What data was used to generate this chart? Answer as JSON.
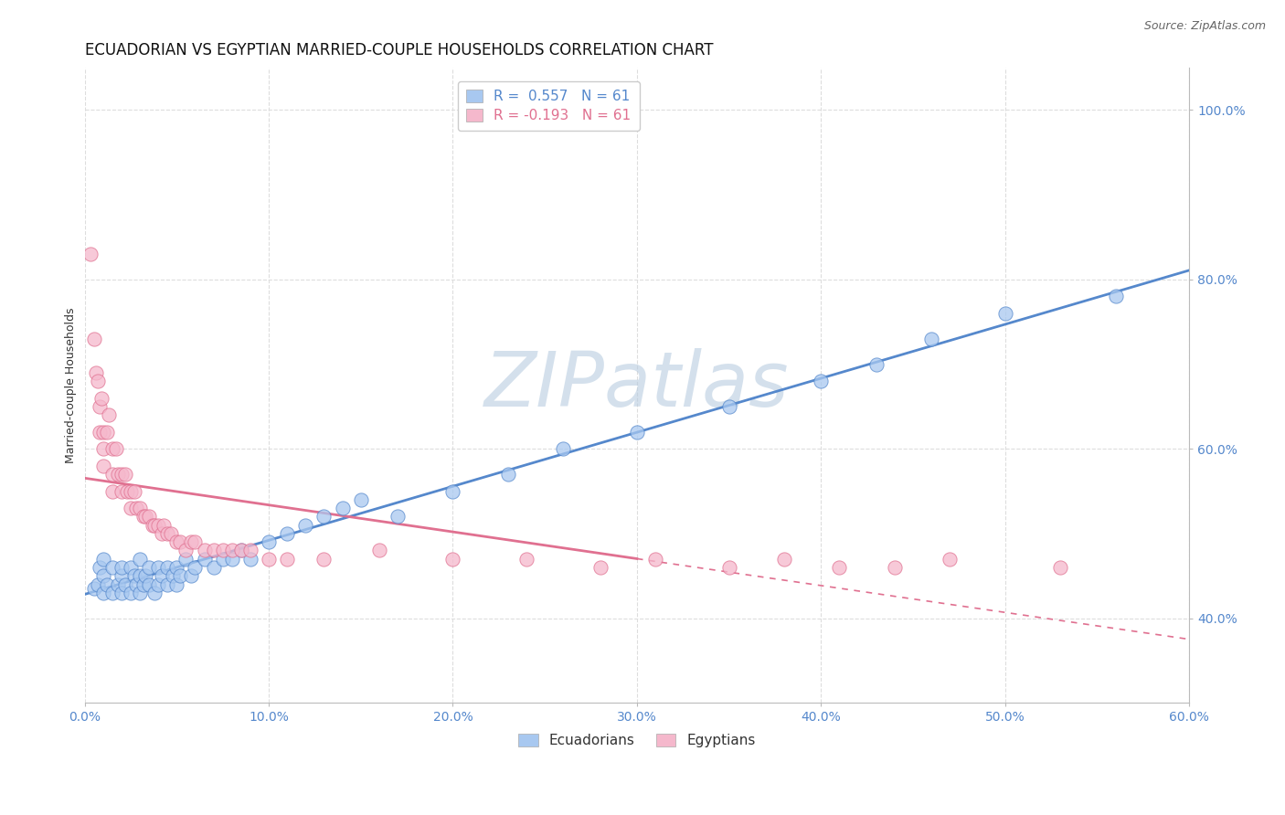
{
  "title": "ECUADORIAN VS EGYPTIAN MARRIED-COUPLE HOUSEHOLDS CORRELATION CHART",
  "source_text": "Source: ZipAtlas.com",
  "ylabel": "Married-couple Households",
  "xlim": [
    0.0,
    0.6
  ],
  "ylim": [
    0.3,
    1.05
  ],
  "xtick_labels": [
    "0.0%",
    "10.0%",
    "20.0%",
    "30.0%",
    "40.0%",
    "50.0%",
    "60.0%"
  ],
  "xtick_vals": [
    0.0,
    0.1,
    0.2,
    0.3,
    0.4,
    0.5,
    0.6
  ],
  "ytick_labels": [
    "40.0%",
    "60.0%",
    "80.0%",
    "100.0%"
  ],
  "ytick_vals": [
    0.4,
    0.6,
    0.8,
    1.0
  ],
  "legend_r1": "R =  0.557   N = 61",
  "legend_r2": "R = -0.193   N = 61",
  "color_blue": "#A8C8F0",
  "color_pink": "#F5B8CC",
  "line_blue": "#5588CC",
  "line_pink": "#E07090",
  "watermark": "ZIPatlas",
  "ecuadorians_x": [
    0.005,
    0.007,
    0.008,
    0.01,
    0.01,
    0.01,
    0.012,
    0.015,
    0.015,
    0.018,
    0.02,
    0.02,
    0.02,
    0.022,
    0.025,
    0.025,
    0.027,
    0.028,
    0.03,
    0.03,
    0.03,
    0.032,
    0.033,
    0.035,
    0.035,
    0.038,
    0.04,
    0.04,
    0.042,
    0.045,
    0.045,
    0.048,
    0.05,
    0.05,
    0.052,
    0.055,
    0.058,
    0.06,
    0.065,
    0.07,
    0.075,
    0.08,
    0.085,
    0.09,
    0.1,
    0.11,
    0.12,
    0.13,
    0.14,
    0.15,
    0.17,
    0.2,
    0.23,
    0.26,
    0.3,
    0.35,
    0.4,
    0.43,
    0.46,
    0.5,
    0.56
  ],
  "ecuadorians_y": [
    0.435,
    0.44,
    0.46,
    0.43,
    0.45,
    0.47,
    0.44,
    0.43,
    0.46,
    0.44,
    0.43,
    0.45,
    0.46,
    0.44,
    0.43,
    0.46,
    0.45,
    0.44,
    0.43,
    0.45,
    0.47,
    0.44,
    0.45,
    0.46,
    0.44,
    0.43,
    0.44,
    0.46,
    0.45,
    0.44,
    0.46,
    0.45,
    0.44,
    0.46,
    0.45,
    0.47,
    0.45,
    0.46,
    0.47,
    0.46,
    0.47,
    0.47,
    0.48,
    0.47,
    0.49,
    0.5,
    0.51,
    0.52,
    0.53,
    0.54,
    0.52,
    0.55,
    0.57,
    0.6,
    0.62,
    0.65,
    0.68,
    0.7,
    0.73,
    0.76,
    0.78
  ],
  "egyptians_x": [
    0.003,
    0.005,
    0.006,
    0.007,
    0.008,
    0.008,
    0.009,
    0.01,
    0.01,
    0.01,
    0.012,
    0.013,
    0.015,
    0.015,
    0.015,
    0.017,
    0.018,
    0.02,
    0.02,
    0.022,
    0.023,
    0.025,
    0.025,
    0.027,
    0.028,
    0.03,
    0.032,
    0.033,
    0.035,
    0.037,
    0.038,
    0.04,
    0.042,
    0.043,
    0.045,
    0.047,
    0.05,
    0.052,
    0.055,
    0.058,
    0.06,
    0.065,
    0.07,
    0.075,
    0.08,
    0.085,
    0.09,
    0.1,
    0.11,
    0.13,
    0.16,
    0.2,
    0.24,
    0.28,
    0.31,
    0.35,
    0.38,
    0.41,
    0.44,
    0.47,
    0.53
  ],
  "egyptians_y": [
    0.83,
    0.73,
    0.69,
    0.68,
    0.65,
    0.62,
    0.66,
    0.62,
    0.6,
    0.58,
    0.62,
    0.64,
    0.6,
    0.57,
    0.55,
    0.6,
    0.57,
    0.57,
    0.55,
    0.57,
    0.55,
    0.55,
    0.53,
    0.55,
    0.53,
    0.53,
    0.52,
    0.52,
    0.52,
    0.51,
    0.51,
    0.51,
    0.5,
    0.51,
    0.5,
    0.5,
    0.49,
    0.49,
    0.48,
    0.49,
    0.49,
    0.48,
    0.48,
    0.48,
    0.48,
    0.48,
    0.48,
    0.47,
    0.47,
    0.47,
    0.48,
    0.47,
    0.47,
    0.46,
    0.47,
    0.46,
    0.47,
    0.46,
    0.46,
    0.47,
    0.46
  ],
  "grid_color": "#DDDDDD",
  "bg_color": "#FFFFFF",
  "watermark_color": "#B8CCE0",
  "watermark_fontsize": 60,
  "title_fontsize": 12,
  "axis_label_fontsize": 9,
  "tick_fontsize": 10,
  "legend_fontsize": 11,
  "source_fontsize": 9
}
